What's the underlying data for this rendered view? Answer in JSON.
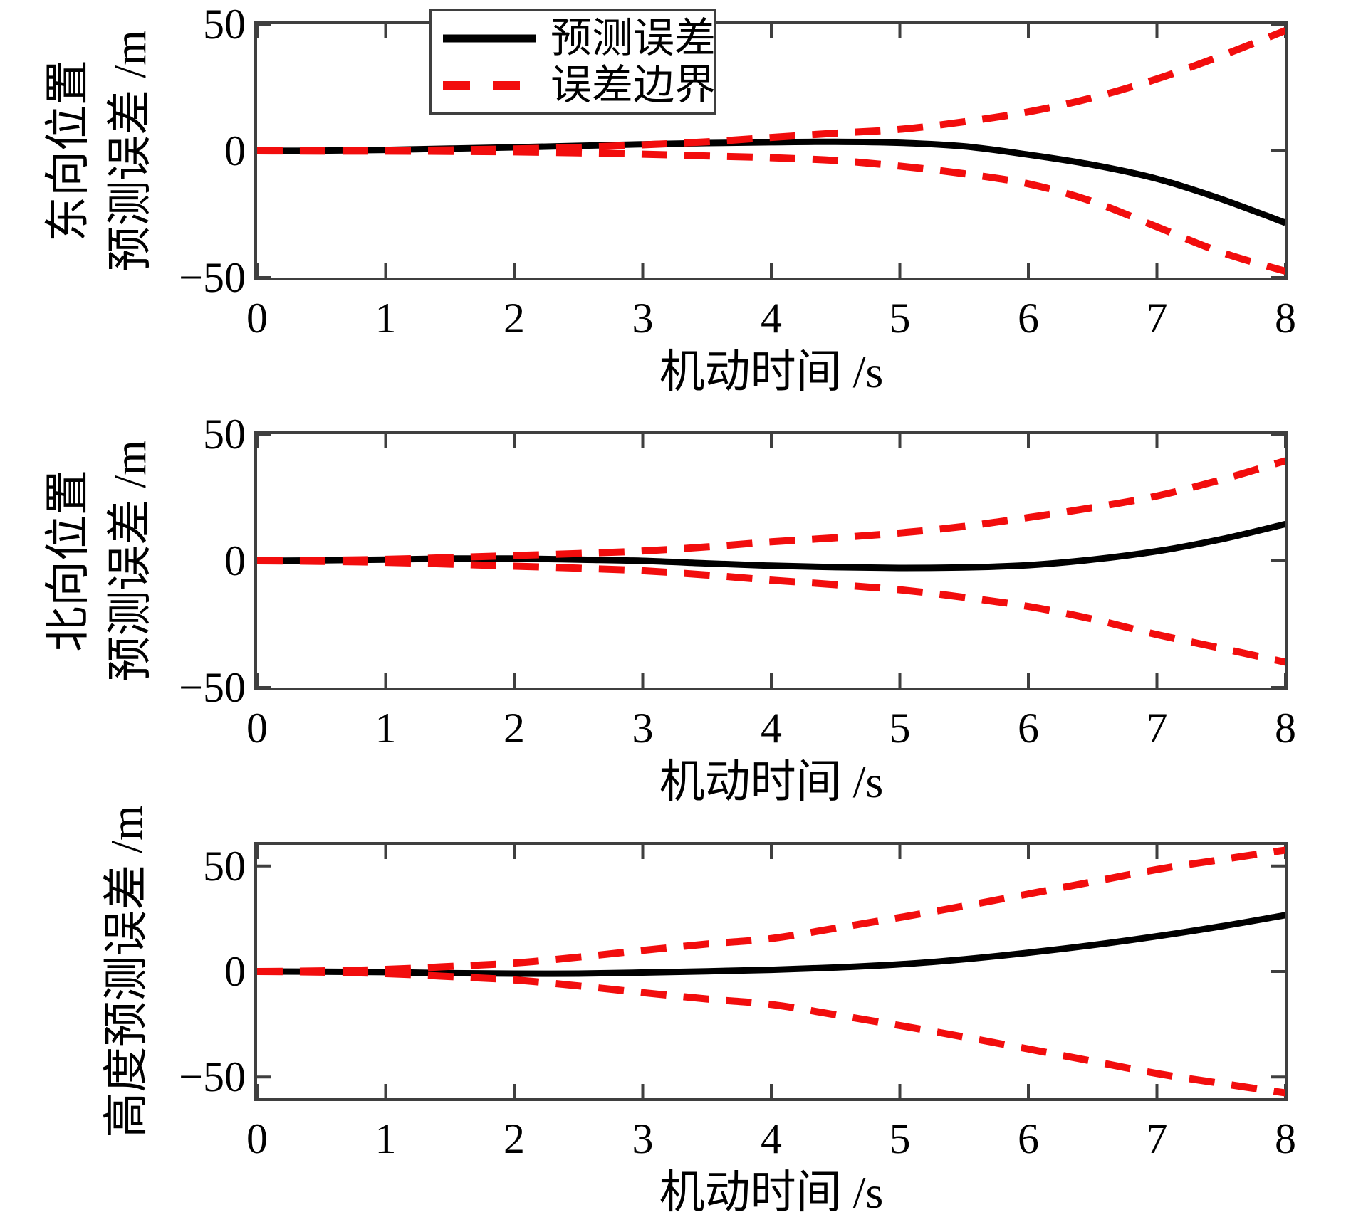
{
  "figure": {
    "background": "#ffffff",
    "description": "三幅堆叠折线图：预测误差与误差边界"
  },
  "axis": {
    "color": "#3f3f3f",
    "text_color": "#000000"
  },
  "legend": {
    "position": "top-left-inside-first-subplot",
    "entries": [
      {
        "label": "预测误差",
        "style": "solid",
        "color": "#000000"
      },
      {
        "label": "误差边界",
        "style": "dashed",
        "color": "#f20d0d"
      }
    ]
  },
  "chart_data": [
    {
      "type": "line",
      "title": "",
      "xlabel": "机动时间 /s",
      "ylabel_lines": [
        "东向位置",
        "预测误差 /m"
      ],
      "xlim": [
        0,
        8
      ],
      "ylim": [
        -50,
        50
      ],
      "grid": false,
      "xticks": [
        0,
        1,
        2,
        3,
        4,
        5,
        6,
        7,
        8
      ],
      "xtick_labels": [
        "0",
        "1",
        "2",
        "3",
        "4",
        "5",
        "6",
        "7",
        "8"
      ],
      "yticks": [
        {
          "value": 50,
          "label": "50"
        },
        {
          "value": 0,
          "label": "0"
        },
        {
          "value": -50,
          "label": "−50"
        }
      ],
      "x": [
        0,
        0.5,
        1,
        1.5,
        2,
        2.5,
        3,
        3.5,
        4,
        4.5,
        5,
        5.5,
        6,
        6.5,
        7,
        7.5,
        8
      ],
      "series": [
        {
          "name": "预测误差",
          "color": "#000000",
          "dashed": false,
          "width": 9,
          "values": [
            0,
            0.1,
            0.4,
            0.9,
            1.4,
            2.0,
            2.6,
            3.1,
            3.4,
            3.6,
            3.2,
            1.8,
            -1.5,
            -5.5,
            -11,
            -19,
            -28.4
          ]
        },
        {
          "name": "误差边界上",
          "color": "#f20d0d",
          "dashed": true,
          "width": 10,
          "values": [
            0,
            0.1,
            0.2,
            0.4,
            0.8,
            1.4,
            2.4,
            3.6,
            5.3,
            7.0,
            8.5,
            11.5,
            15.4,
            21.0,
            28.4,
            37.5,
            47.5
          ]
        },
        {
          "name": "误差边界下",
          "color": "#f20d0d",
          "dashed": true,
          "width": 10,
          "values": [
            0,
            -0.1,
            -0.1,
            -0.2,
            -0.4,
            -0.8,
            -1.3,
            -2.0,
            -2.7,
            -3.8,
            -6.0,
            -9.0,
            -13.0,
            -20.0,
            -30.0,
            -40.0,
            -47.5
          ]
        }
      ]
    },
    {
      "type": "line",
      "title": "",
      "xlabel": "机动时间 /s",
      "ylabel_lines": [
        "北向位置",
        "预测误差 /m"
      ],
      "xlim": [
        0,
        8
      ],
      "ylim": [
        -50,
        50
      ],
      "grid": false,
      "xticks": [
        0,
        1,
        2,
        3,
        4,
        5,
        6,
        7,
        8
      ],
      "xtick_labels": [
        "0",
        "1",
        "2",
        "3",
        "4",
        "5",
        "6",
        "7",
        "8"
      ],
      "yticks": [
        {
          "value": 50,
          "label": "50"
        },
        {
          "value": 0,
          "label": "0"
        },
        {
          "value": -50,
          "label": "−50"
        }
      ],
      "x": [
        0,
        0.5,
        1,
        1.5,
        2,
        2.5,
        3,
        3.5,
        4,
        4.5,
        5,
        5.5,
        6,
        6.5,
        7,
        7.5,
        8
      ],
      "series": [
        {
          "name": "预测误差",
          "color": "#000000",
          "dashed": false,
          "width": 9,
          "values": [
            0,
            0.2,
            0.5,
            0.9,
            0.9,
            0.5,
            0,
            -1.0,
            -1.9,
            -2.5,
            -2.8,
            -2.6,
            -1.7,
            0.5,
            3.8,
            8.5,
            14.5
          ]
        },
        {
          "name": "误差边界上",
          "color": "#f20d0d",
          "dashed": true,
          "width": 10,
          "values": [
            0,
            0.2,
            0.6,
            1.3,
            2.1,
            2.9,
            3.9,
            5.5,
            7.5,
            9.1,
            11.0,
            13.6,
            17.1,
            21.0,
            25.6,
            32.0,
            39.5
          ]
        },
        {
          "name": "误差边界下",
          "color": "#f20d0d",
          "dashed": true,
          "width": 10,
          "values": [
            0,
            -0.2,
            -0.6,
            -1.3,
            -2.1,
            -2.9,
            -3.9,
            -5.6,
            -7.6,
            -9.4,
            -11.4,
            -14.4,
            -18.0,
            -23.0,
            -29.1,
            -34.5,
            -40.0
          ]
        }
      ]
    },
    {
      "type": "line",
      "title": "",
      "xlabel": "机动时间 /s",
      "ylabel_lines": [
        "高度预测误差 /m"
      ],
      "xlim": [
        0,
        8
      ],
      "ylim": [
        -60,
        60
      ],
      "grid": false,
      "xticks": [
        0,
        1,
        2,
        3,
        4,
        5,
        6,
        7,
        8
      ],
      "xtick_labels": [
        "0",
        "1",
        "2",
        "3",
        "4",
        "5",
        "6",
        "7",
        "8"
      ],
      "yticks": [
        {
          "value": 50,
          "label": "50"
        },
        {
          "value": 0,
          "label": "0"
        },
        {
          "value": -50,
          "label": "−50"
        }
      ],
      "x": [
        0,
        0.5,
        1,
        1.5,
        2,
        2.5,
        3,
        3.5,
        4,
        4.5,
        5,
        5.5,
        6,
        6.5,
        7,
        7.5,
        8
      ],
      "series": [
        {
          "name": "预测误差",
          "color": "#000000",
          "dashed": false,
          "width": 9,
          "values": [
            0,
            -0.1,
            -0.3,
            -0.8,
            -1.0,
            -1.0,
            -0.5,
            0.1,
            0.8,
            1.9,
            3.4,
            5.8,
            8.9,
            12.5,
            16.7,
            21.4,
            26.7
          ]
        },
        {
          "name": "误差边界上",
          "color": "#f20d0d",
          "dashed": true,
          "width": 10,
          "values": [
            0,
            0.3,
            1.0,
            2.4,
            4.0,
            6.8,
            10.0,
            13.0,
            15.6,
            20.5,
            25.6,
            31.0,
            36.7,
            42.5,
            48.3,
            53.0,
            57.5
          ]
        },
        {
          "name": "误差边界下",
          "color": "#f20d0d",
          "dashed": true,
          "width": 10,
          "values": [
            0,
            -0.3,
            -1.0,
            -2.4,
            -4.0,
            -6.8,
            -10.0,
            -13.0,
            -15.6,
            -20.5,
            -25.6,
            -31.0,
            -36.7,
            -42.5,
            -48.3,
            -53.0,
            -57.5
          ]
        }
      ]
    }
  ]
}
